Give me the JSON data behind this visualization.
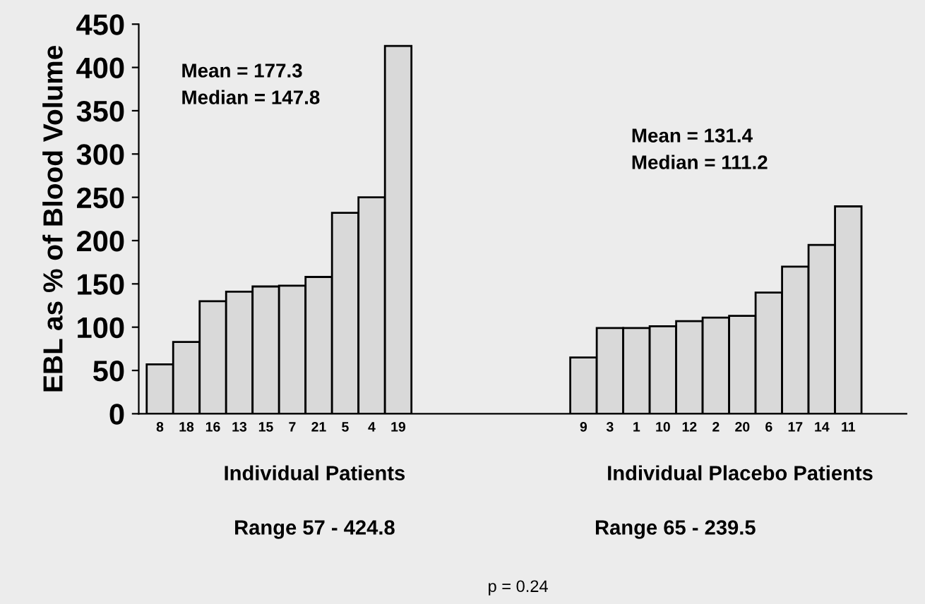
{
  "chart_data": {
    "type": "bar",
    "ylabel": "EBL as % of Blood Volume",
    "categories": [
      "8",
      "18",
      "16",
      "13",
      "15",
      "7",
      "21",
      "5",
      "4",
      "19",
      null,
      null,
      null,
      null,
      null,
      null,
      "9",
      "3",
      "1",
      "10",
      "12",
      "2",
      "20",
      "6",
      "17",
      "14",
      "11"
    ],
    "values": [
      57,
      83,
      130,
      141,
      147,
      148,
      158,
      232,
      250,
      424.8,
      null,
      null,
      null,
      null,
      null,
      null,
      65,
      99,
      99,
      101,
      107,
      111,
      113,
      140,
      170,
      195,
      239.5
    ],
    "color": "#d9d9d9",
    "ylim": [
      0,
      450
    ],
    "yticks": [
      0,
      50,
      100,
      150,
      200,
      250,
      300,
      350,
      400,
      450
    ],
    "grid": false,
    "legend": false,
    "annotations": [
      "Mean = 177.3\nMedian = 147.8",
      "Mean = 131.4\nMedian = 111.2",
      "Individual Patients",
      "Range 57 - 424.8",
      "Individual Placebo Patients",
      "Range 65 - 239.5",
      "p = 0.24"
    ]
  }
}
